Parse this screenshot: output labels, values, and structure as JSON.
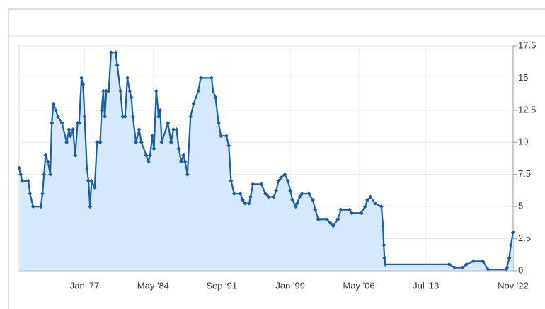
{
  "chart_data": {
    "type": "area",
    "x": [
      "1970-01",
      "1970-03",
      "1970-05",
      "1971-01",
      "1971-03",
      "1971-07",
      "1972-05",
      "1972-07",
      "1972-09",
      "1972-11",
      "1973-02",
      "1973-05",
      "1973-07",
      "1973-09",
      "1973-12",
      "1974-03",
      "1974-08",
      "1975-02",
      "1975-05",
      "1975-07",
      "1975-10",
      "1976-01",
      "1976-04",
      "1976-06",
      "1976-09",
      "1976-11",
      "1977-01",
      "1977-04",
      "1977-06",
      "1977-08",
      "1977-10",
      "1978-02",
      "1978-05",
      "1978-09",
      "1978-11",
      "1979-01",
      "1979-03",
      "1979-05",
      "1979-08",
      "1979-11",
      "1980-05",
      "1980-07",
      "1980-11",
      "1981-02",
      "1981-05",
      "1981-08",
      "1981-11",
      "1982-01",
      "1982-03",
      "1982-07",
      "1982-11",
      "1983-02",
      "1983-08",
      "1983-11",
      "1984-01",
      "1984-04",
      "1984-06",
      "1984-09",
      "1984-12",
      "1985-02",
      "1985-04",
      "1985-12",
      "1986-04",
      "1986-07",
      "1986-11",
      "1987-02",
      "1987-05",
      "1987-08",
      "1987-10",
      "1988-01",
      "1988-05",
      "1988-09",
      "1989-03",
      "1989-06",
      "1990-08",
      "1990-10",
      "1991-01",
      "1991-05",
      "1991-08",
      "1992-03",
      "1992-06",
      "1992-09",
      "1993-01",
      "1993-09",
      "1993-12",
      "1994-03",
      "1994-08",
      "1994-10",
      "1995-01",
      "1995-12",
      "1996-05",
      "1996-09",
      "1997-04",
      "1997-07",
      "1997-10",
      "1998-01",
      "1998-06",
      "1998-10",
      "1999-01",
      "1999-04",
      "1999-08",
      "1999-10",
      "2000-01",
      "2000-04",
      "2001-01",
      "2001-06",
      "2001-09",
      "2002-01",
      "2002-12",
      "2003-04",
      "2003-08",
      "2004-02",
      "2004-06",
      "2005-05",
      "2005-08",
      "2006-08",
      "2007-01",
      "2007-04",
      "2007-08",
      "2008-02",
      "2008-10",
      "2008-12",
      "2009-01",
      "2009-02",
      "2009-03",
      "2016-01",
      "2016-08",
      "2017-06",
      "2017-11",
      "2018-08",
      "2019-08",
      "2020-03",
      "2022-02",
      "2022-03",
      "2022-06",
      "2022-08",
      "2022-11"
    ],
    "values": [
      8,
      7.5,
      7,
      7,
      6,
      5,
      5,
      6,
      7.5,
      9,
      8.5,
      7.5,
      11.5,
      13,
      12.5,
      12,
      11.5,
      10,
      11,
      10.5,
      11,
      9,
      11.5,
      11.5,
      15,
      14.5,
      12,
      8,
      7,
      5,
      7,
      6.5,
      10,
      10,
      12.5,
      14,
      12,
      14,
      14,
      17,
      17,
      16,
      14,
      12,
      12,
      15,
      14,
      13.5,
      12,
      10,
      11,
      10,
      9,
      8.5,
      9,
      10.5,
      9.5,
      14,
      12,
      12.5,
      10,
      11.5,
      10,
      11,
      11,
      9.5,
      8.5,
      9,
      8.5,
      7.5,
      12,
      13,
      14,
      15,
      15,
      14,
      13.5,
      11.5,
      10.5,
      10.5,
      9.75,
      7,
      6,
      6,
      5.5,
      5.25,
      5.25,
      5.75,
      6.75,
      6.75,
      6,
      5.75,
      5.75,
      6.25,
      7,
      7.25,
      7.5,
      7,
      6.25,
      5.5,
      5,
      5.25,
      5.75,
      6,
      6,
      5.5,
      4.75,
      4,
      4,
      3.75,
      3.5,
      4,
      4.75,
      4.75,
      4.5,
      4.5,
      5,
      5.5,
      5.75,
      5.25,
      5,
      3.5,
      2,
      1,
      0.5,
      0.5,
      0.25,
      0.25,
      0.5,
      0.75,
      0.75,
      0.1,
      0.1,
      0.25,
      1,
      2,
      3
    ],
    "color": "#1a5ea8",
    "fill": "#d6e8fb",
    "xlim": [
      "1970-01",
      "2022-11"
    ],
    "xticks": [
      {
        "value": "1977-01",
        "label": "Jan '77"
      },
      {
        "value": "1984-05",
        "label": "May '84"
      },
      {
        "value": "1991-09",
        "label": "Sep '91"
      },
      {
        "value": "1999-01",
        "label": "Jan '99"
      },
      {
        "value": "2006-05",
        "label": "May '06"
      },
      {
        "value": "2013-07",
        "label": "Jul '13"
      },
      {
        "value": "2022-11",
        "label": "Nov '22"
      }
    ],
    "ylim": [
      0,
      17.5
    ],
    "yticks": [
      0,
      2.5,
      5,
      7.5,
      10,
      12.5,
      15,
      17.5
    ],
    "grid": true
  }
}
